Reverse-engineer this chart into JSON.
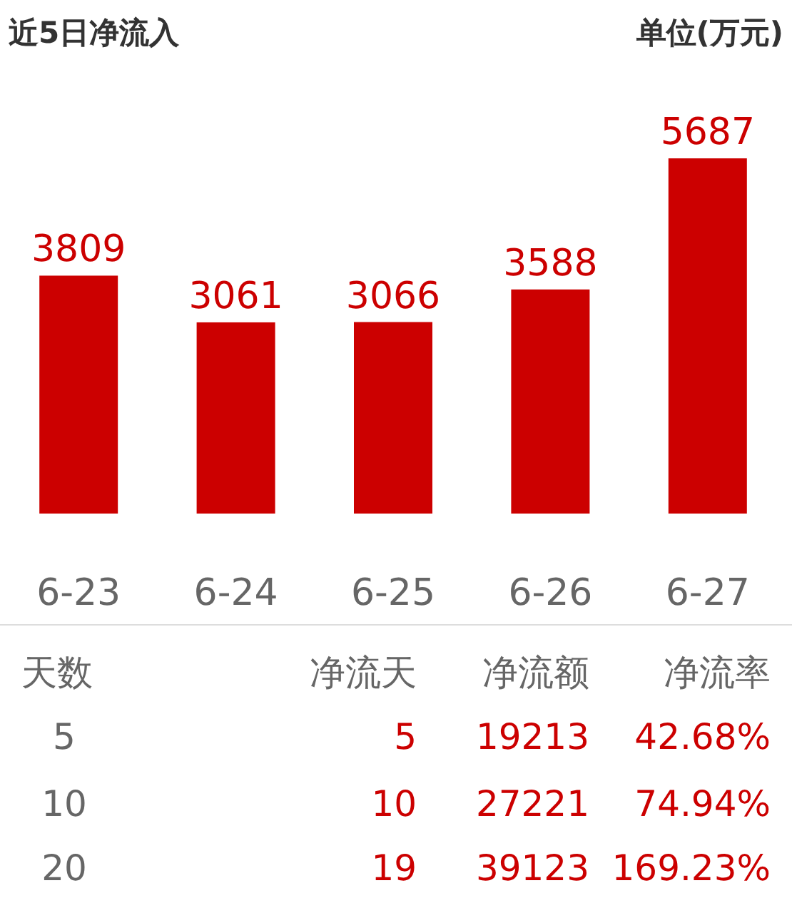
{
  "chart_data": [
    {
      "type": "bar",
      "title": "近5日净流入",
      "subtitle": "单位(万元)",
      "categories": [
        "6-23",
        "6-24",
        "6-25",
        "6-26",
        "6-27"
      ],
      "values": [
        3809,
        3061,
        3066,
        3588,
        5687
      ],
      "color": "#cc0000",
      "data_labels": true,
      "legend": false,
      "grid": false
    },
    {
      "type": "other",
      "annotations": [
        "天数",
        "净流天",
        "净流额",
        "净流率",
        "5",
        "5",
        "19213",
        "42.68%",
        "10",
        "10",
        "27221",
        "74.94%",
        "20",
        "19",
        "39123",
        "169.23%"
      ]
    }
  ]
}
